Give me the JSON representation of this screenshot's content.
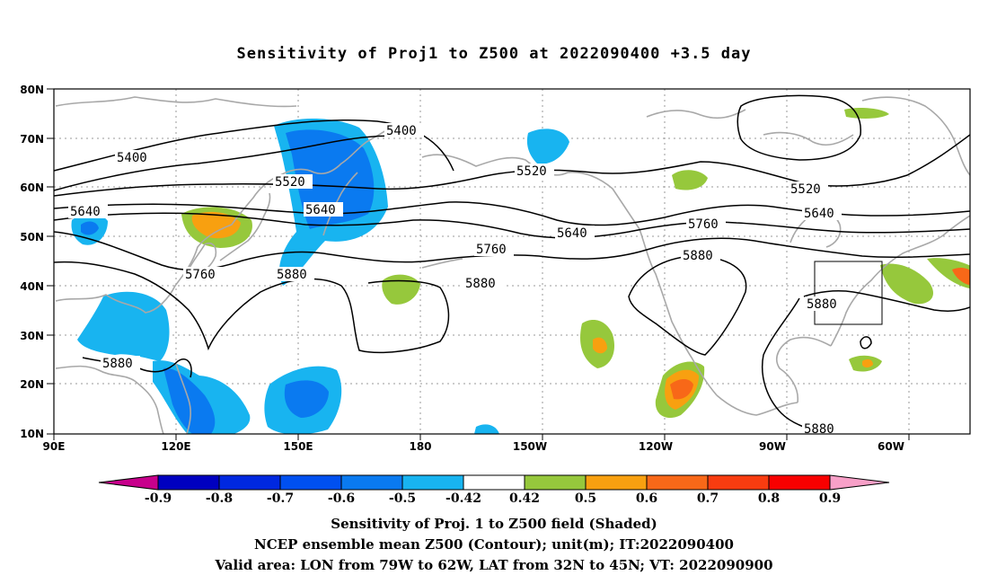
{
  "title": "Sensitivity of Proj1 to Z500 at 2022090400 +3.5 day",
  "lat_labels": [
    "80N",
    "70N",
    "60N",
    "50N",
    "40N",
    "30N",
    "20N",
    "10N"
  ],
  "lon_labels": [
    "90E",
    "120E",
    "150E",
    "180",
    "150W",
    "120W",
    "90W",
    "60W"
  ],
  "contour_labels": [
    "5400",
    "5400",
    "5520",
    "5520",
    "5520",
    "5640",
    "5640",
    "5640",
    "5640",
    "5760",
    "5760",
    "5760",
    "5880",
    "5880",
    "5880",
    "5880",
    "5880",
    "5880"
  ],
  "colorbar": {
    "tick_labels": [
      "-0.9",
      "-0.8",
      "-0.7",
      "-0.6",
      "-0.5",
      "-0.42",
      "0.42",
      "0.5",
      "0.6",
      "0.7",
      "0.8",
      "0.9"
    ],
    "colors": [
      "#c8008c",
      "#0000c0",
      "#0028e0",
      "#0050f0",
      "#0a7af0",
      "#18b4f0",
      "#ffffff",
      "#96c83c",
      "#f8a010",
      "#f86818",
      "#f83c10",
      "#f80000",
      "#f8a0c8"
    ]
  },
  "shading_colors": {
    "neg_light": "#18b4f0",
    "neg_mid": "#0a7af0",
    "neg_dark": "#0050f0",
    "pos_light": "#96c83c",
    "pos_mid": "#f8a010",
    "pos_dark": "#f86818",
    "pos_max": "#f83c10"
  },
  "captions": [
    "Sensitivity of Proj. 1 to Z500 field (Shaded)",
    "NCEP ensemble mean Z500 (Contour); unit(m); IT:2022090400",
    "Valid area: LON from 79W to 62W, LAT from 32N to 45N; VT: 2022090900"
  ]
}
